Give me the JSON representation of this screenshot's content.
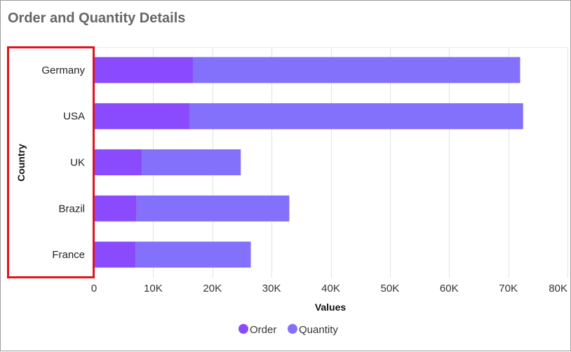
{
  "chart_data": {
    "type": "bar",
    "orientation": "horizontal",
    "stacked": true,
    "title": "Order and Quantity Details",
    "xlabel": "Values",
    "ylabel": "Country",
    "categories": [
      "Germany",
      "USA",
      "UK",
      "Brazil",
      "France"
    ],
    "series": [
      {
        "name": "Order",
        "color": "#8a4bff",
        "values": [
          16800,
          16200,
          8100,
          7200,
          7000
        ]
      },
      {
        "name": "Quantity",
        "color": "#8370fb",
        "values": [
          55200,
          56300,
          16700,
          25800,
          19500
        ]
      }
    ],
    "xlim": [
      0,
      80000
    ],
    "xticks": [
      "0",
      "10K",
      "20K",
      "30K",
      "40K",
      "50K",
      "60K",
      "70K",
      "80K"
    ],
    "grid": true,
    "legend": "bottom-center"
  }
}
